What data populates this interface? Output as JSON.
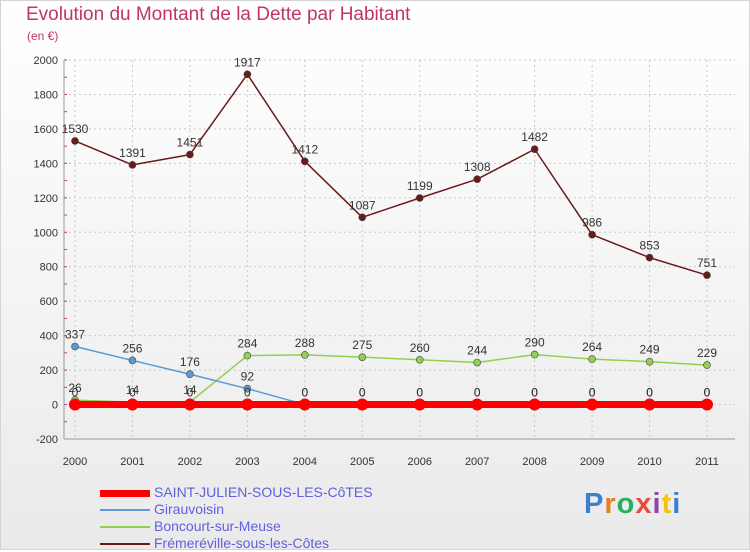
{
  "title": "Evolution du Montant de la Dette par Habitant",
  "subtitle": "(en €)",
  "logo": {
    "text": "Proxiti"
  },
  "chart_data": {
    "type": "line",
    "x": [
      "2000",
      "2001",
      "2002",
      "2003",
      "2004",
      "2005",
      "2006",
      "2007",
      "2008",
      "2009",
      "2010",
      "2011"
    ],
    "ylim": [
      -200,
      2000
    ],
    "yticks": [
      -200,
      0,
      200,
      400,
      600,
      800,
      1000,
      1200,
      1400,
      1600,
      1800,
      2000
    ],
    "grid": true,
    "legend": "bottom-left",
    "series": [
      {
        "name": "SAINT-JULIEN-SOUS-LES-CôTES",
        "color": "#ff0000",
        "values": [
          0,
          0,
          0,
          0,
          0,
          0,
          0,
          0,
          0,
          0,
          0,
          0
        ],
        "labels": [
          "0",
          "0",
          "0",
          "0",
          "0",
          "0",
          "0",
          "0",
          "0",
          "0",
          "0",
          "0"
        ]
      },
      {
        "name": "Girauvoisin",
        "color": "#5b9bd5",
        "values": [
          337,
          256,
          176,
          92,
          0,
          0,
          0,
          0,
          0,
          0,
          0,
          0
        ],
        "labels": [
          "337",
          "256",
          "176",
          "92",
          "0",
          "0",
          "0",
          "0",
          "0",
          "0",
          "0",
          "0"
        ]
      },
      {
        "name": "Boncourt-sur-Meuse",
        "color": "#92d050",
        "values": [
          26,
          14,
          14,
          284,
          288,
          275,
          260,
          244,
          290,
          264,
          249,
          229
        ],
        "labels": [
          "26",
          "14",
          "14",
          "284",
          "288",
          "275",
          "260",
          "244",
          "290",
          "264",
          "249",
          "229"
        ]
      },
      {
        "name": "Frémeréville-sous-les-Côtes",
        "color": "#6b1a1a",
        "values": [
          1530,
          1391,
          1451,
          1917,
          1412,
          1087,
          1199,
          1308,
          1482,
          986,
          853,
          751
        ],
        "labels": [
          "1530",
          "1391",
          "1451",
          "1917",
          "1412",
          "1087",
          "1199",
          "1308",
          "1482",
          "986",
          "853",
          "751"
        ]
      }
    ]
  }
}
